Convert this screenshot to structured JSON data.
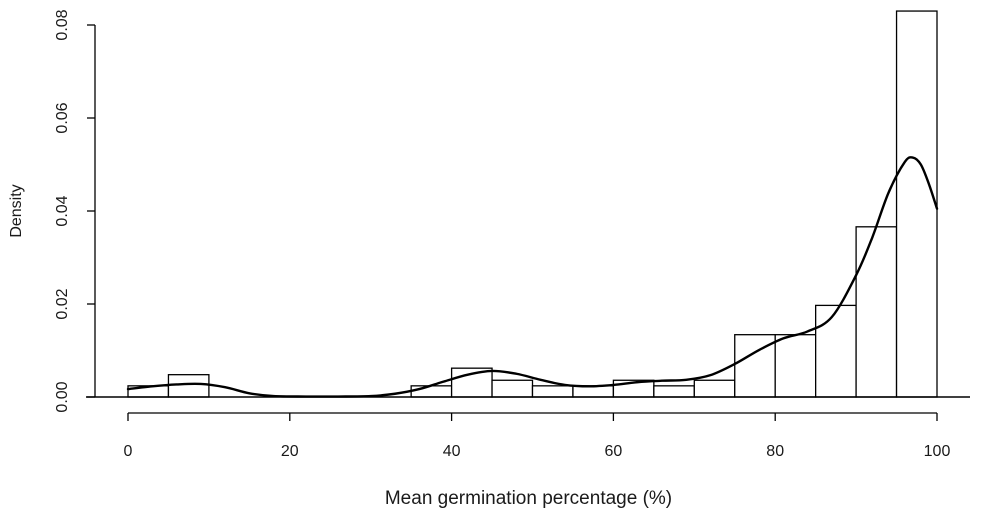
{
  "chart_data": {
    "type": "bar",
    "subtype": "histogram",
    "title": "",
    "xlabel": "Mean germination percentage (%)",
    "ylabel": "Density",
    "xlim": [
      0,
      100
    ],
    "ylim": [
      0,
      0.08
    ],
    "bin_width": 5,
    "bins": [
      [
        0,
        5
      ],
      [
        5,
        10
      ],
      [
        10,
        15
      ],
      [
        15,
        20
      ],
      [
        20,
        25
      ],
      [
        25,
        30
      ],
      [
        30,
        35
      ],
      [
        35,
        40
      ],
      [
        40,
        45
      ],
      [
        45,
        50
      ],
      [
        50,
        55
      ],
      [
        55,
        60
      ],
      [
        60,
        65
      ],
      [
        65,
        70
      ],
      [
        70,
        75
      ],
      [
        75,
        80
      ],
      [
        80,
        85
      ],
      [
        85,
        90
      ],
      [
        90,
        95
      ],
      [
        95,
        100
      ]
    ],
    "values": [
      0.0024,
      0.0048,
      0,
      0,
      0,
      0,
      0,
      0.0024,
      0.0062,
      0.0036,
      0.0024,
      0.0024,
      0.0036,
      0.0024,
      0.0036,
      0.0134,
      0.0134,
      0.0197,
      0.0366,
      0.083
    ],
    "x_ticks": [
      "0",
      "20",
      "40",
      "60",
      "80",
      "100"
    ],
    "y_ticks": [
      "0.00",
      "0.02",
      "0.04",
      "0.06",
      "0.08"
    ],
    "density_curve": {
      "x": [
        0,
        3,
        6,
        9,
        12,
        15,
        18,
        22,
        26,
        30,
        33,
        36,
        39,
        42,
        45,
        48,
        51,
        54,
        57,
        60,
        63,
        66,
        69,
        72,
        75,
        78,
        81,
        84,
        87,
        90,
        92,
        94,
        96,
        97,
        98,
        99,
        100
      ],
      "y": [
        0.0017,
        0.0023,
        0.0027,
        0.0028,
        0.0021,
        0.0008,
        0.0002,
        0.0001,
        0.0001,
        0.0002,
        0.0007,
        0.0017,
        0.0033,
        0.0048,
        0.0056,
        0.005,
        0.0037,
        0.0026,
        0.0023,
        0.0026,
        0.0032,
        0.0035,
        0.0037,
        0.0047,
        0.0071,
        0.0101,
        0.0126,
        0.0141,
        0.0172,
        0.0262,
        0.0343,
        0.0439,
        0.0505,
        0.0515,
        0.05,
        0.0458,
        0.0405
      ]
    },
    "grid": false,
    "legend": "none"
  }
}
